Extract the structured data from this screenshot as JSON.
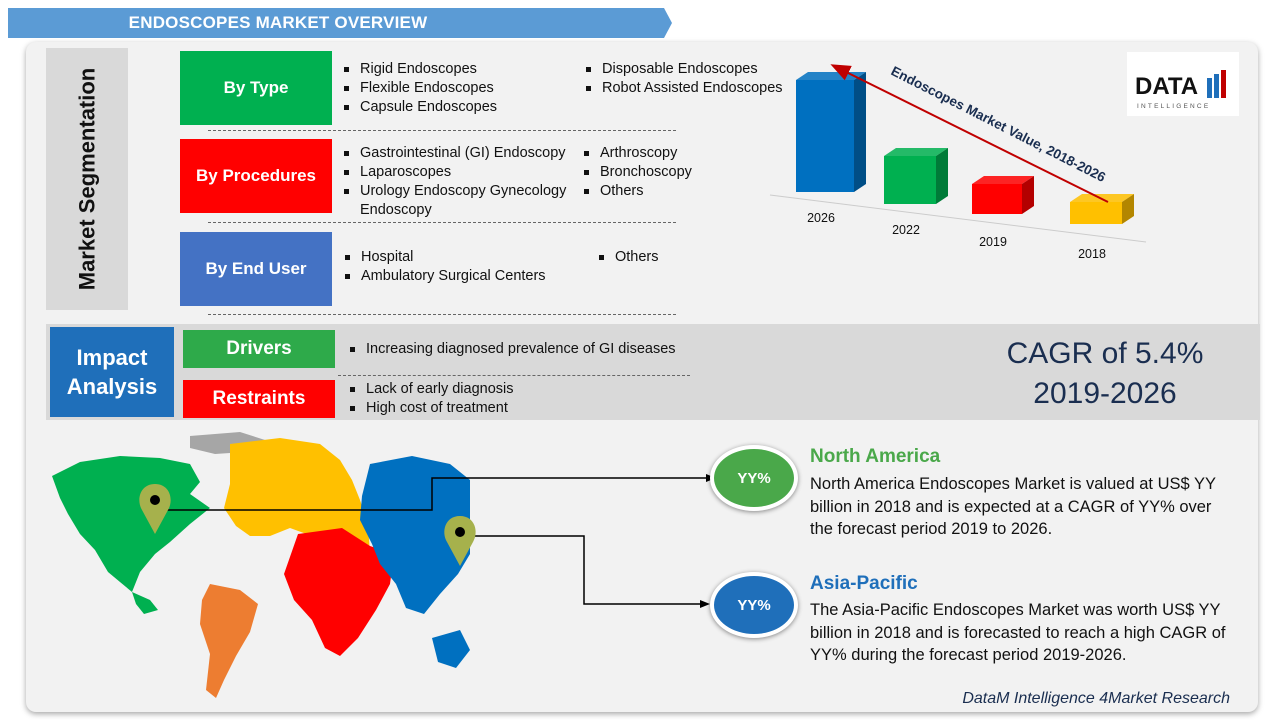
{
  "header": {
    "title": "ENDOSCOPES MARKET OVERVIEW"
  },
  "segmentation": {
    "label": "Market Segmentation",
    "by_type": {
      "label": "By Type",
      "items_left": [
        "Rigid Endoscopes",
        "Flexible Endoscopes",
        "Capsule Endoscopes"
      ],
      "items_right": [
        "Disposable Endoscopes",
        "Robot Assisted Endoscopes"
      ]
    },
    "by_procedures": {
      "label": "By Procedures",
      "items_left": [
        "Gastrointestinal (GI) Endoscopy",
        "Laparoscopes",
        "Urology Endoscopy Gynecology",
        "Endoscopy"
      ],
      "items_right": [
        "Arthroscopy",
        "Bronchoscopy",
        "Others"
      ]
    },
    "by_end_user": {
      "label": "By End User",
      "items_left": [
        "Hospital",
        "Ambulatory Surgical Centers"
      ],
      "items_right": [
        "Others"
      ]
    }
  },
  "impact": {
    "label_line1": "Impact",
    "label_line2": "Analysis",
    "drivers": {
      "label": "Drivers",
      "items": [
        "Increasing diagnosed prevalence of GI diseases"
      ]
    },
    "restraints": {
      "label": "Restraints",
      "items": [
        "Lack of early diagnosis",
        "High cost of treatment"
      ]
    }
  },
  "cagr": {
    "line1": "CAGR of 5.4%",
    "line2": "2019-2026"
  },
  "chart_data": {
    "type": "bar",
    "title": "Endoscopes Market Value, 2018-2026",
    "categories": [
      "2026",
      "2022",
      "2019",
      "2018"
    ],
    "bar_colors": [
      "#0070c0",
      "#00b050",
      "#ff0000",
      "#ffc000"
    ]
  },
  "logo": {
    "text": "DATA",
    "subtext": "INTELLIGENCE"
  },
  "regions": [
    {
      "name": "North America",
      "badge": "YY%",
      "badge_color": "#4aa84a",
      "text_lines": [
        "North America Endoscopes Market is valued at US$ YY",
        "billion in 2018 and is expected at a CAGR of YY% over",
        "the forecast period 2019 to 2026."
      ]
    },
    {
      "name": "Asia-Pacific",
      "badge": "YY%",
      "badge_color": "#1f6fba",
      "text_lines": [
        "The Asia-Pacific Endoscopes Market was worth US$ YY",
        "billion in 2018 and is forecasted to reach a high CAGR of",
        "YY% during the forecast period 2019-2026."
      ]
    }
  ],
  "footer": {
    "text": "DataM Intelligence 4Market Research"
  }
}
